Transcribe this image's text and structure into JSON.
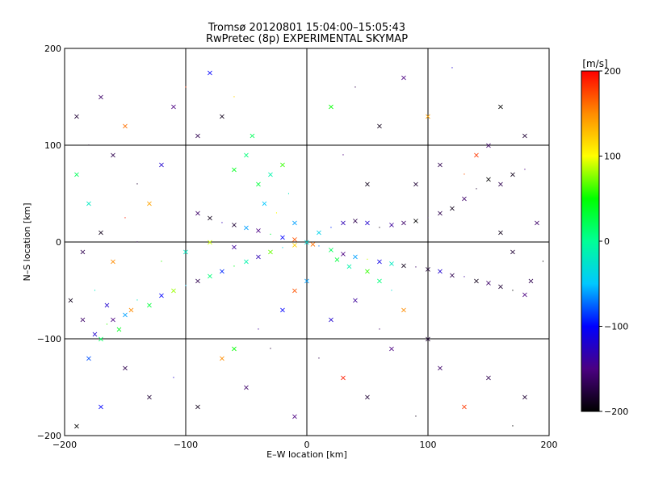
{
  "chart_data": {
    "type": "scatter",
    "title": "Tromsø 20120801 15:04:00–15:05:43",
    "subtitle": "RwPretec (8p) EXPERIMENTAL SKYMAP",
    "xlabel": "E–W location [km]",
    "ylabel": "N–S location [km]",
    "xlim": [
      -200,
      200
    ],
    "ylim": [
      -200,
      200
    ],
    "x_ticks": [
      -200,
      -100,
      0,
      100,
      200
    ],
    "y_ticks": [
      -200,
      -100,
      0,
      100,
      200
    ],
    "x_tick_labels": [
      "−200",
      "−100",
      "0",
      "100",
      "200"
    ],
    "y_tick_labels": [
      "−200",
      "−100",
      "0",
      "100",
      "200"
    ],
    "grid": true,
    "markers": [
      "×",
      "·"
    ],
    "colorbar": {
      "label": "[m/s]",
      "range": [
        -200,
        200
      ],
      "ticks": [
        200,
        100,
        0,
        -100,
        -200
      ],
      "tick_labels": [
        "200",
        "100",
        "0",
        "−100",
        "−200"
      ],
      "colormap": [
        "#000000",
        "#4b0082",
        "#0000ff",
        "#00c8ff",
        "#00ff96",
        "#00ff00",
        "#ffff00",
        "#ff8c00",
        "#ff0000"
      ]
    },
    "series": [
      {
        "points": [
          [
            -180,
            -120,
            -80
          ],
          [
            -175,
            -95,
            -120
          ],
          [
            -170,
            -100,
            20
          ],
          [
            -165,
            -85,
            60
          ],
          [
            -160,
            -80,
            -150
          ],
          [
            -150,
            -75,
            -60
          ],
          [
            -145,
            -70,
            150
          ],
          [
            -140,
            -60,
            -20
          ],
          [
            -130,
            -65,
            30
          ],
          [
            -120,
            -55,
            -100
          ],
          [
            -110,
            -50,
            80
          ],
          [
            -100,
            -45,
            -50
          ],
          [
            -90,
            -40,
            -170
          ],
          [
            -80,
            -35,
            10
          ],
          [
            -70,
            -30,
            -90
          ],
          [
            -60,
            -25,
            40
          ],
          [
            -50,
            -20,
            -10
          ],
          [
            -40,
            -15,
            -130
          ],
          [
            -30,
            -10,
            70
          ],
          [
            -20,
            -6,
            -40
          ],
          [
            -10,
            -3,
            120
          ],
          [
            0,
            0,
            -30
          ],
          [
            5,
            -2,
            160
          ],
          [
            10,
            -4,
            -70
          ],
          [
            20,
            -8,
            20
          ],
          [
            30,
            -12,
            -150
          ],
          [
            40,
            -15,
            -60
          ],
          [
            50,
            -18,
            90
          ],
          [
            60,
            -20,
            -110
          ],
          [
            70,
            -22,
            -20
          ],
          [
            80,
            -24,
            -190
          ],
          [
            90,
            -26,
            -160
          ],
          [
            100,
            -28,
            -180
          ],
          [
            110,
            -30,
            -120
          ],
          [
            120,
            -34,
            -170
          ],
          [
            130,
            -36,
            -140
          ],
          [
            140,
            -40,
            -190
          ],
          [
            150,
            -42,
            -160
          ],
          [
            160,
            -46,
            -180
          ],
          [
            170,
            -50,
            -200
          ],
          [
            180,
            -54,
            -150
          ],
          [
            -90,
            30,
            -160
          ],
          [
            -80,
            25,
            -190
          ],
          [
            -70,
            20,
            -130
          ],
          [
            -60,
            18,
            -180
          ],
          [
            -50,
            15,
            -60
          ],
          [
            -40,
            12,
            -150
          ],
          [
            -30,
            8,
            30
          ],
          [
            -20,
            5,
            -100
          ],
          [
            -10,
            3,
            170
          ],
          [
            10,
            10,
            -40
          ],
          [
            20,
            15,
            -90
          ],
          [
            30,
            20,
            -130
          ],
          [
            40,
            22,
            -170
          ],
          [
            50,
            20,
            -120
          ],
          [
            60,
            15,
            -190
          ],
          [
            70,
            18,
            -140
          ],
          [
            80,
            20,
            -160
          ],
          [
            90,
            22,
            -200
          ],
          [
            100,
            25,
            -180
          ],
          [
            110,
            30,
            -170
          ],
          [
            120,
            35,
            -190
          ],
          [
            130,
            45,
            -160
          ],
          [
            140,
            55,
            -180
          ],
          [
            150,
            65,
            -200
          ],
          [
            160,
            60,
            -170
          ],
          [
            170,
            70,
            -190
          ],
          [
            180,
            75,
            -150
          ],
          [
            -40,
            60,
            30
          ],
          [
            -30,
            70,
            -10
          ],
          [
            -20,
            80,
            60
          ],
          [
            -15,
            50,
            -20
          ],
          [
            -50,
            90,
            10
          ],
          [
            -60,
            75,
            40
          ],
          [
            -35,
            40,
            -50
          ],
          [
            -25,
            30,
            100
          ],
          [
            -10,
            20,
            -60
          ],
          [
            -45,
            110,
            20
          ],
          [
            -190,
            130,
            -180
          ],
          [
            -180,
            100,
            -190
          ],
          [
            -170,
            150,
            -160
          ],
          [
            -160,
            90,
            -170
          ],
          [
            -150,
            120,
            160
          ],
          [
            -140,
            60,
            -180
          ],
          [
            -130,
            40,
            140
          ],
          [
            -120,
            80,
            -120
          ],
          [
            -110,
            140,
            -150
          ],
          [
            -100,
            160,
            180
          ],
          [
            -90,
            110,
            -170
          ],
          [
            -80,
            175,
            -100
          ],
          [
            -70,
            130,
            -190
          ],
          [
            -60,
            150,
            120
          ],
          [
            -180,
            40,
            -20
          ],
          [
            -170,
            10,
            -190
          ],
          [
            -160,
            -20,
            150
          ],
          [
            -150,
            25,
            190
          ],
          [
            -190,
            70,
            20
          ],
          [
            -185,
            -10,
            -170
          ],
          [
            20,
            140,
            50
          ],
          [
            40,
            160,
            -170
          ],
          [
            60,
            120,
            -190
          ],
          [
            80,
            170,
            -150
          ],
          [
            100,
            130,
            140
          ],
          [
            120,
            180,
            -120
          ],
          [
            140,
            90,
            180
          ],
          [
            160,
            140,
            -200
          ],
          [
            180,
            110,
            -180
          ],
          [
            30,
            90,
            -150
          ],
          [
            50,
            60,
            -190
          ],
          [
            90,
            60,
            -180
          ],
          [
            110,
            80,
            -170
          ],
          [
            130,
            70,
            170
          ],
          [
            150,
            100,
            -160
          ],
          [
            -150,
            -130,
            -170
          ],
          [
            -130,
            -160,
            -180
          ],
          [
            -110,
            -140,
            -120
          ],
          [
            -90,
            -170,
            -190
          ],
          [
            -70,
            -120,
            150
          ],
          [
            -50,
            -150,
            -160
          ],
          [
            -30,
            -110,
            -180
          ],
          [
            -10,
            -180,
            -150
          ],
          [
            -170,
            -170,
            -100
          ],
          [
            -190,
            -190,
            -200
          ],
          [
            10,
            -120,
            -170
          ],
          [
            30,
            -140,
            190
          ],
          [
            50,
            -160,
            -180
          ],
          [
            70,
            -110,
            -150
          ],
          [
            90,
            -180,
            -190
          ],
          [
            110,
            -130,
            -160
          ],
          [
            130,
            -170,
            180
          ],
          [
            150,
            -140,
            -170
          ],
          [
            170,
            -190,
            -200
          ],
          [
            180,
            -160,
            -180
          ],
          [
            20,
            -80,
            -120
          ],
          [
            40,
            -60,
            -140
          ],
          [
            60,
            -90,
            -160
          ],
          [
            80,
            -70,
            150
          ],
          [
            100,
            -100,
            -180
          ],
          [
            -20,
            -70,
            -100
          ],
          [
            -40,
            -90,
            -140
          ],
          [
            -60,
            -110,
            50
          ],
          [
            -10,
            -50,
            170
          ],
          [
            0,
            -40,
            -60
          ],
          [
            -120,
            -20,
            60
          ],
          [
            -100,
            -10,
            -20
          ],
          [
            -80,
            0,
            90
          ],
          [
            -60,
            -5,
            -140
          ],
          [
            -140,
            0,
            -170
          ],
          [
            160,
            10,
            -190
          ],
          [
            170,
            -10,
            -180
          ],
          [
            190,
            20,
            -160
          ],
          [
            195,
            -20,
            -200
          ],
          [
            185,
            -40,
            -170
          ],
          [
            -195,
            -60,
            -190
          ],
          [
            -185,
            -80,
            -160
          ],
          [
            -175,
            -50,
            -20
          ],
          [
            -165,
            -65,
            -120
          ],
          [
            -155,
            -90,
            40
          ],
          [
            60,
            -40,
            10
          ],
          [
            70,
            -50,
            -30
          ],
          [
            50,
            -30,
            60
          ],
          [
            35,
            -25,
            -10
          ],
          [
            25,
            -18,
            30
          ]
        ]
      }
    ]
  }
}
